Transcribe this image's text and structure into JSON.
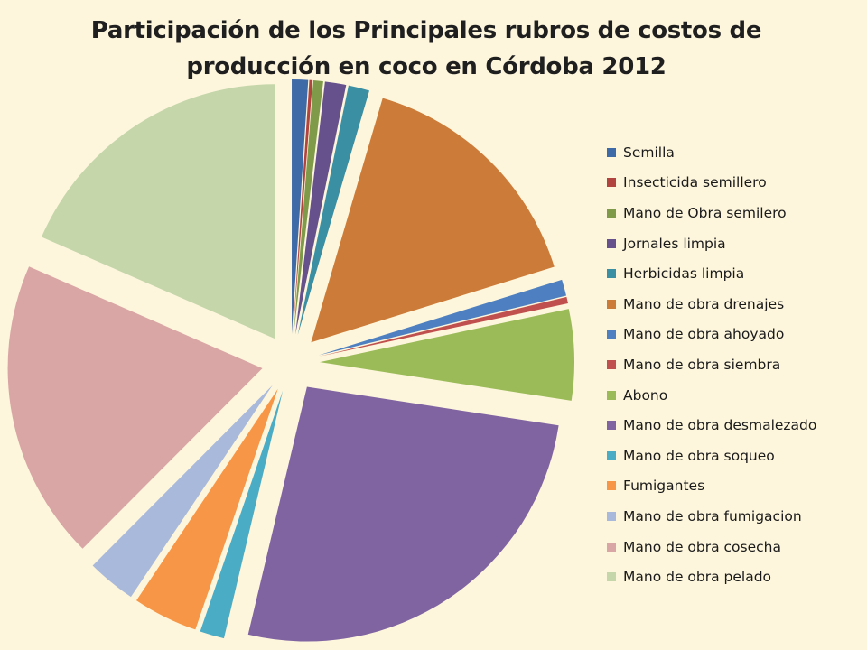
{
  "chart_data": {
    "type": "pie",
    "title": "Participación de los Principales rubros de costos de producción en coco en Córdoba 2012",
    "title_lines": [
      "Participación de los Principales rubros de costos de",
      "producción en coco en Córdoba 2012"
    ],
    "exploded": true,
    "legend_position": "right",
    "slices": [
      {
        "label": "Semilla",
        "value": 1.0,
        "color": "#3f6aa8"
      },
      {
        "label": "Insecticida semillero",
        "value": 0.2,
        "color": "#b2443f"
      },
      {
        "label": "Mano de Obra semilero",
        "value": 0.6,
        "color": "#7f9a48"
      },
      {
        "label": "Jornales limpia",
        "value": 1.3,
        "color": "#67518d"
      },
      {
        "label": "Herbicidas limpia",
        "value": 1.3,
        "color": "#3a8fa3"
      },
      {
        "label": "Mano de obra drenajes",
        "value": 15.2,
        "color": "#cc7b38"
      },
      {
        "label": "Mano de obra ahoyado",
        "value": 1.0,
        "color": "#4e80c1"
      },
      {
        "label": "Mano de obra siembra",
        "value": 0.4,
        "color": "#c0504d"
      },
      {
        "label": "Abono",
        "value": 5.6,
        "color": "#9bbb59"
      },
      {
        "label": "Mano de obra desmalezado",
        "value": 25.5,
        "color": "#8064a2"
      },
      {
        "label": "Mano de obra soqueo",
        "value": 1.5,
        "color": "#4bacc6"
      },
      {
        "label": "Fumigantes",
        "value": 4.0,
        "color": "#f79646"
      },
      {
        "label": "Mano de obra fumigacion",
        "value": 3.0,
        "color": "#a9b9db"
      },
      {
        "label": "Mano de obra cosecha",
        "value": 18.5,
        "color": "#d9a6a5"
      },
      {
        "label": "Mano de obra pelado",
        "value": 17.9,
        "color": "#c4d6aa"
      }
    ]
  }
}
